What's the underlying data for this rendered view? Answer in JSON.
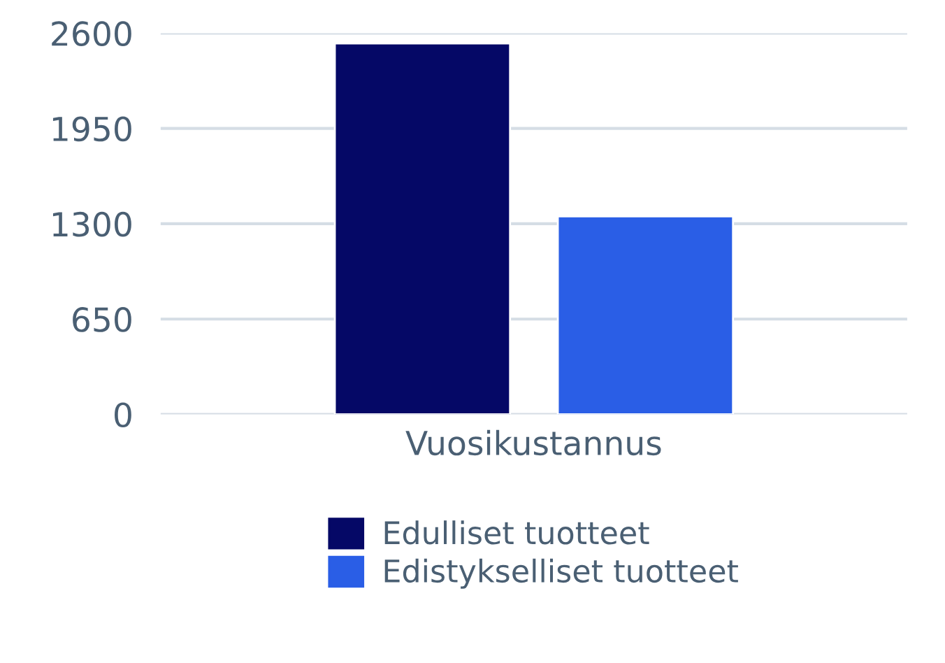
{
  "chart_data": {
    "type": "bar",
    "categories": [
      "Vuosikustannus"
    ],
    "series": [
      {
        "name": "Edulliset tuotteet",
        "color": "#050866",
        "values": [
          2530
        ]
      },
      {
        "name": "Edistykselliset tuotteet",
        "color": "#2a5ee6",
        "values": [
          1350
        ]
      }
    ],
    "ylim": [
      0,
      2600
    ],
    "yticks": [
      0,
      650,
      1300,
      1950,
      2600
    ],
    "grid": "y",
    "legend": "bottom"
  }
}
